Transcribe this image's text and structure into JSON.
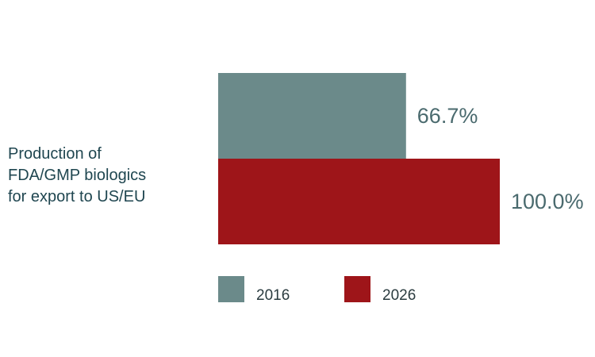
{
  "chart_data": {
    "type": "bar",
    "orientation": "horizontal",
    "categories": [
      "Production of FDA/GMP biologics for export to US/EU"
    ],
    "category_label_lines": [
      "Production of",
      "FDA/GMP biologics",
      "for export to US/EU"
    ],
    "series": [
      {
        "name": "2016",
        "values": [
          66.7
        ],
        "label": "66.7%",
        "color": "#6b8a8a"
      },
      {
        "name": "2026",
        "values": [
          100.0
        ],
        "label": "100.0%",
        "color": "#9e1519"
      }
    ],
    "xlim": [
      0,
      100
    ],
    "unit": "%",
    "grid": false,
    "legend": {
      "placement": "bottom",
      "entries": [
        "2016",
        "2026"
      ]
    }
  }
}
